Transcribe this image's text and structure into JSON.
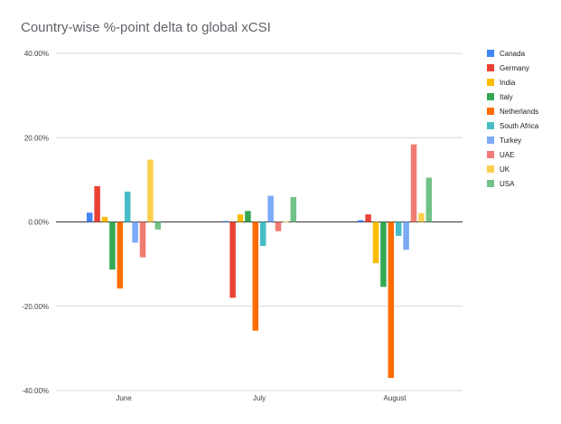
{
  "chart_data": {
    "type": "bar",
    "title": "Country-wise %-point delta to global xCSI",
    "xlabel": "",
    "ylabel": "",
    "categories": [
      "June",
      "July",
      "August"
    ],
    "ylim": [
      -40,
      40
    ],
    "y_ticks": [
      40,
      20,
      0,
      -20,
      -40
    ],
    "y_tick_labels": [
      "40.00%",
      "20.00%",
      "0.00%",
      "-20.00%",
      "-40.00%"
    ],
    "grid": true,
    "legend_position": "right",
    "series": [
      {
        "name": "Canada",
        "color": "#4285f4",
        "values": [
          2.2,
          0.2,
          0.4
        ]
      },
      {
        "name": "Germany",
        "color": "#ea4335",
        "values": [
          8.5,
          -18.0,
          1.8
        ]
      },
      {
        "name": "India",
        "color": "#fbbc04",
        "values": [
          1.2,
          1.8,
          -9.8
        ]
      },
      {
        "name": "Italy",
        "color": "#34a853",
        "values": [
          -11.3,
          2.6,
          -15.4
        ]
      },
      {
        "name": "Netherlands",
        "color": "#ff6d01",
        "values": [
          -15.8,
          -25.8,
          -37.0
        ]
      },
      {
        "name": "South Africa",
        "color": "#46bdc6",
        "values": [
          7.2,
          -5.7,
          -3.3
        ]
      },
      {
        "name": "Turkey",
        "color": "#7baaf7",
        "values": [
          -4.9,
          6.2,
          -6.6
        ]
      },
      {
        "name": "UAE",
        "color": "#f07b72",
        "values": [
          -8.4,
          -2.2,
          18.4
        ]
      },
      {
        "name": "UK",
        "color": "#fcd04f",
        "values": [
          14.8,
          0.1,
          2.1
        ]
      },
      {
        "name": "USA",
        "color": "#71c287",
        "values": [
          -1.8,
          5.9,
          10.5
        ]
      }
    ]
  }
}
